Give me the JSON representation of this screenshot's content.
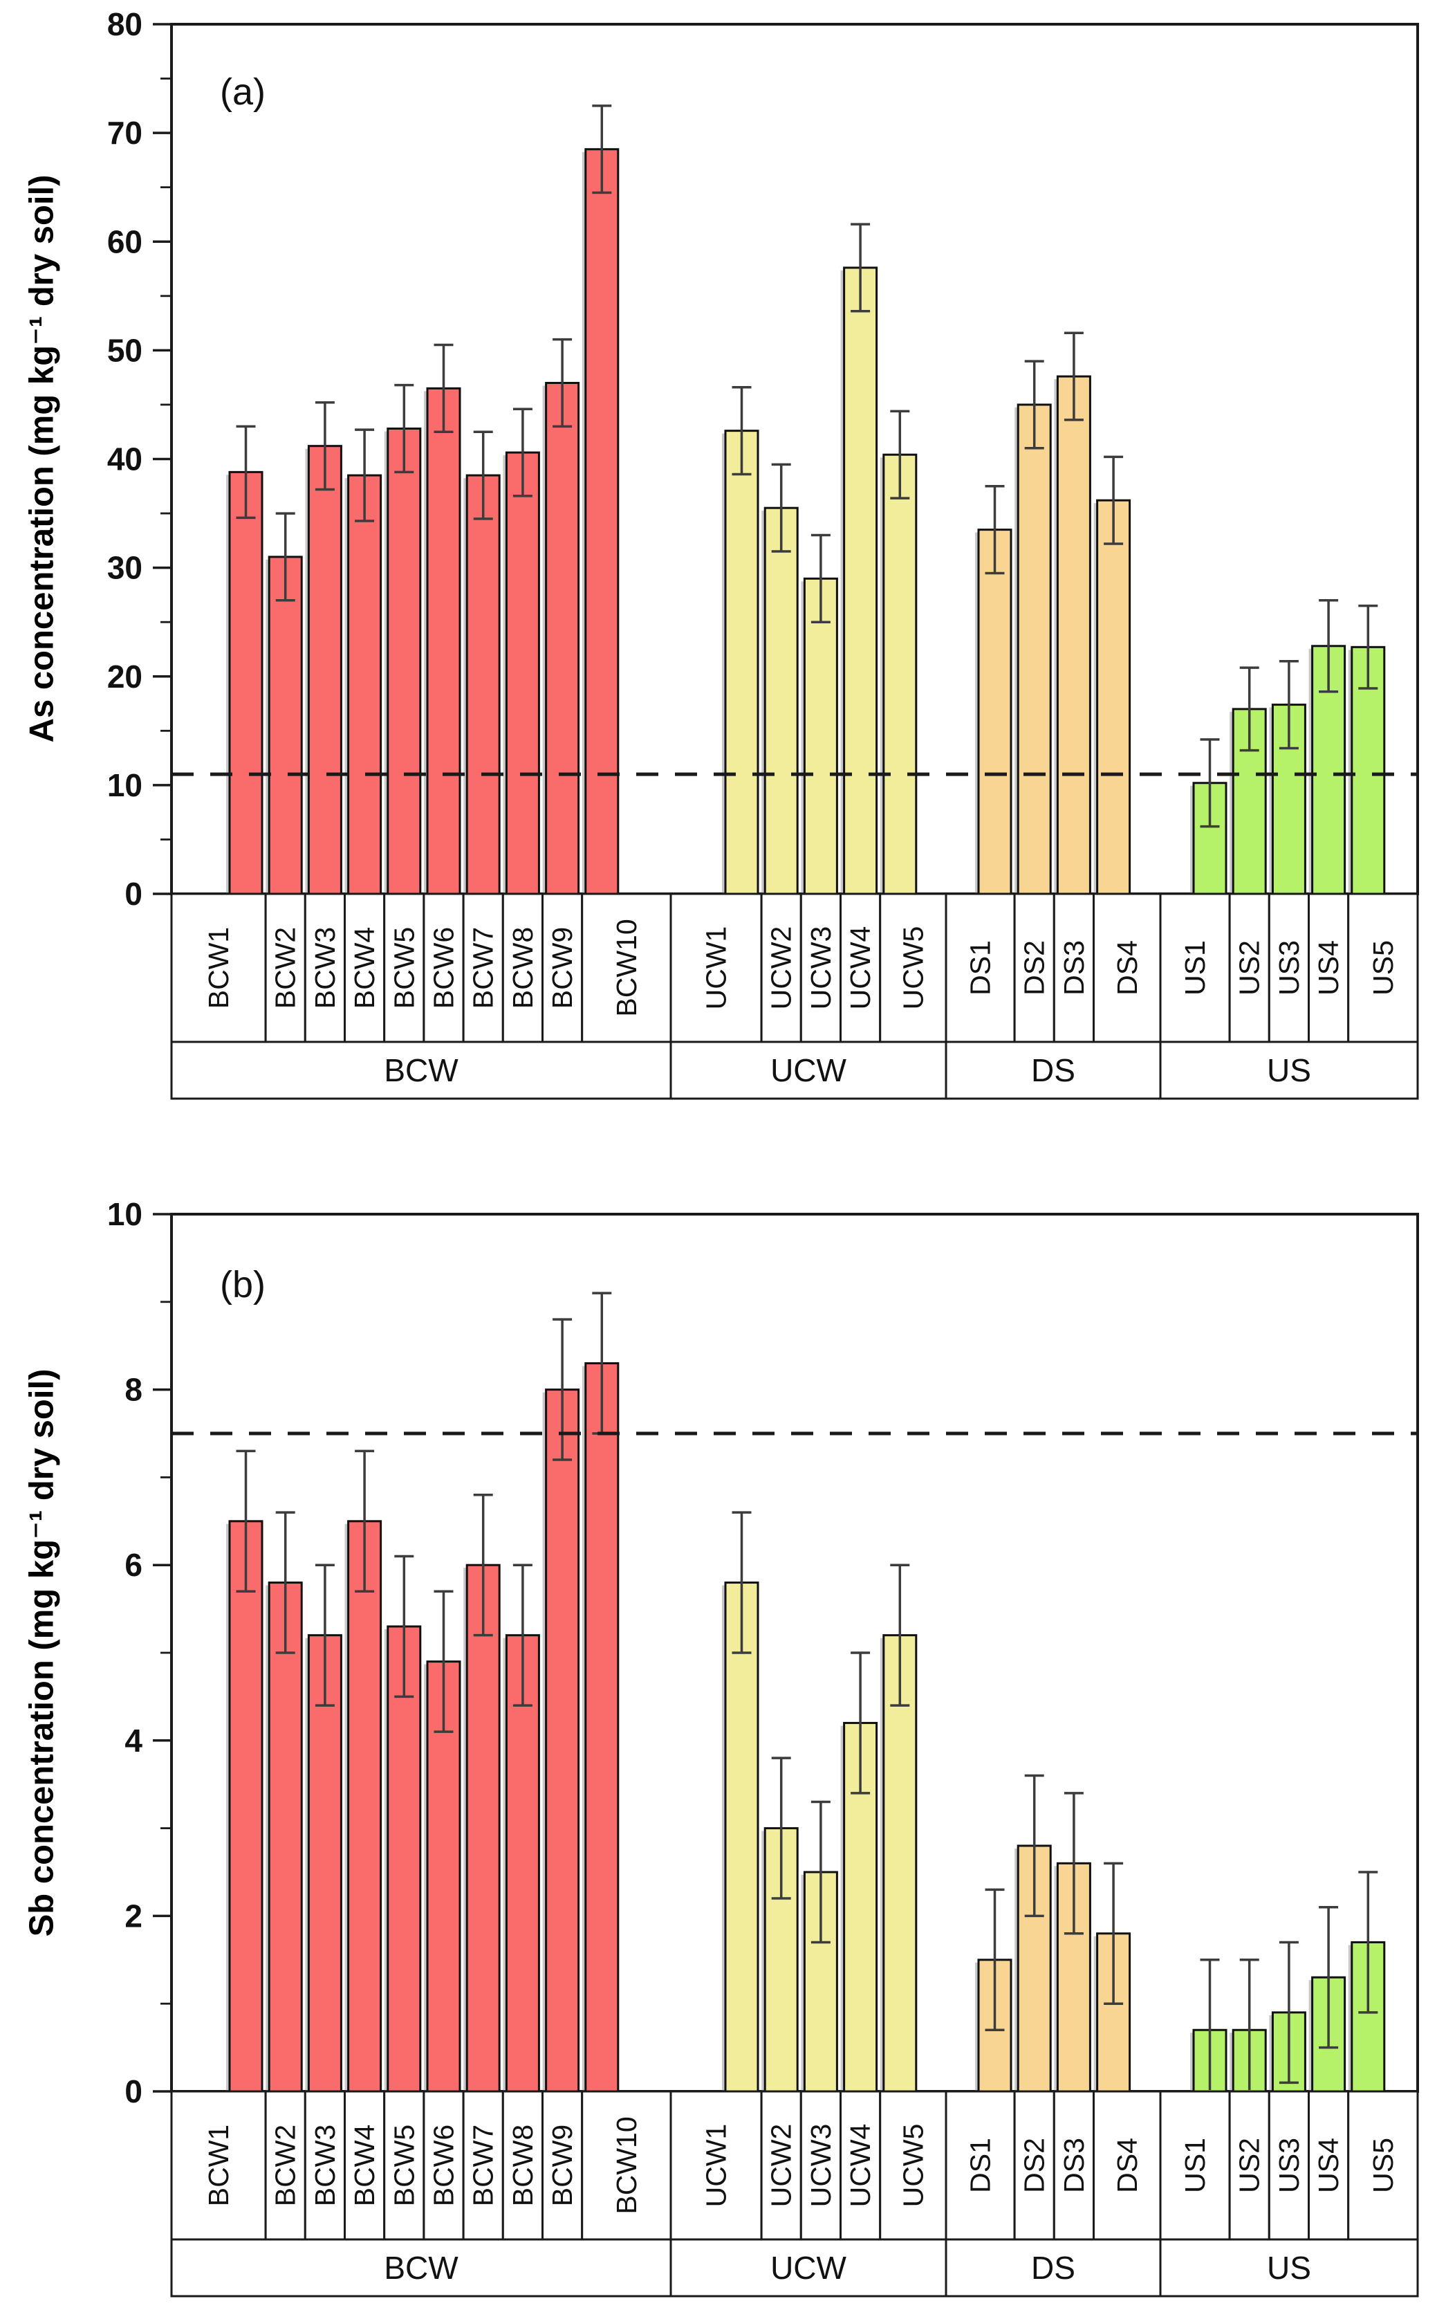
{
  "figure": {
    "background_color": "#ffffff",
    "frame_color": "#1a1a1a",
    "error_bar_color": "#3c3c3c",
    "threshold_line_color": "#1a1a1a"
  },
  "chart_data": [
    {
      "type": "bar",
      "panel_label": "(a)",
      "ylabel": "As concentration (mg kg⁻¹ dry soil)",
      "ylim": [
        0,
        80
      ],
      "yticks": [
        0,
        10,
        20,
        30,
        40,
        50,
        60,
        70,
        80
      ],
      "yminor_step": 5,
      "dashed_line_y": 11,
      "grid": false,
      "legend_position": "none",
      "groups": [
        {
          "label": "BCW",
          "color": "#fa6b6b",
          "samples": [
            {
              "label": "BCW1",
              "value": 38.8,
              "err": 4.2
            },
            {
              "label": "BCW2",
              "value": 31.0,
              "err": 4.0
            },
            {
              "label": "BCW3",
              "value": 41.2,
              "err": 4.0
            },
            {
              "label": "BCW4",
              "value": 38.5,
              "err": 4.2
            },
            {
              "label": "BCW5",
              "value": 42.8,
              "err": 4.0
            },
            {
              "label": "BCW6",
              "value": 46.5,
              "err": 4.0
            },
            {
              "label": "BCW7",
              "value": 38.5,
              "err": 4.0
            },
            {
              "label": "BCW8",
              "value": 40.6,
              "err": 4.0
            },
            {
              "label": "BCW9",
              "value": 47.0,
              "err": 4.0
            },
            {
              "label": "BCW10",
              "value": 68.5,
              "err": 4.0
            }
          ]
        },
        {
          "label": "UCW",
          "color": "#f1ed9b",
          "samples": [
            {
              "label": "UCW1",
              "value": 42.6,
              "err": 4.0
            },
            {
              "label": "UCW2",
              "value": 35.5,
              "err": 4.0
            },
            {
              "label": "UCW3",
              "value": 29.0,
              "err": 4.0
            },
            {
              "label": "UCW4",
              "value": 57.6,
              "err": 4.0
            },
            {
              "label": "UCW5",
              "value": 40.4,
              "err": 4.0
            }
          ]
        },
        {
          "label": "DS",
          "color": "#f8d593",
          "samples": [
            {
              "label": "DS1",
              "value": 33.5,
              "err": 4.0
            },
            {
              "label": "DS2",
              "value": 45.0,
              "err": 4.0
            },
            {
              "label": "DS3",
              "value": 47.6,
              "err": 4.0
            },
            {
              "label": "DS4",
              "value": 36.2,
              "err": 4.0
            }
          ]
        },
        {
          "label": "US",
          "color": "#b5f169",
          "samples": [
            {
              "label": "US1",
              "value": 10.2,
              "err": 4.0
            },
            {
              "label": "US2",
              "value": 17.0,
              "err": 3.8
            },
            {
              "label": "US3",
              "value": 17.4,
              "err": 4.0
            },
            {
              "label": "US4",
              "value": 22.8,
              "err": 4.2
            },
            {
              "label": "US5",
              "value": 22.7,
              "err": 3.8
            }
          ]
        }
      ]
    },
    {
      "type": "bar",
      "panel_label": "(b)",
      "ylabel": "Sb concentration (mg kg⁻¹ dry soil)",
      "ylim": [
        0,
        10
      ],
      "yticks": [
        0,
        2,
        4,
        6,
        8,
        10
      ],
      "yminor_step": 1,
      "dashed_line_y": 7.5,
      "grid": false,
      "legend_position": "none",
      "groups": [
        {
          "label": "BCW",
          "color": "#fa6b6b",
          "samples": [
            {
              "label": "BCW1",
              "value": 6.5,
              "err": 0.8
            },
            {
              "label": "BCW2",
              "value": 5.8,
              "err": 0.8
            },
            {
              "label": "BCW3",
              "value": 5.2,
              "err": 0.8
            },
            {
              "label": "BCW4",
              "value": 6.5,
              "err": 0.8
            },
            {
              "label": "BCW5",
              "value": 5.3,
              "err": 0.8
            },
            {
              "label": "BCW6",
              "value": 4.9,
              "err": 0.8
            },
            {
              "label": "BCW7",
              "value": 6.0,
              "err": 0.8
            },
            {
              "label": "BCW8",
              "value": 5.2,
              "err": 0.8
            },
            {
              "label": "BCW9",
              "value": 8.0,
              "err": 0.8
            },
            {
              "label": "BCW10",
              "value": 8.3,
              "err": 0.8
            }
          ]
        },
        {
          "label": "UCW",
          "color": "#f1ed9b",
          "samples": [
            {
              "label": "UCW1",
              "value": 5.8,
              "err": 0.8
            },
            {
              "label": "UCW2",
              "value": 3.0,
              "err": 0.8
            },
            {
              "label": "UCW3",
              "value": 2.5,
              "err": 0.8
            },
            {
              "label": "UCW4",
              "value": 4.2,
              "err": 0.8
            },
            {
              "label": "UCW5",
              "value": 5.2,
              "err": 0.8
            }
          ]
        },
        {
          "label": "DS",
          "color": "#f8d593",
          "samples": [
            {
              "label": "DS1",
              "value": 1.5,
              "err": 0.8
            },
            {
              "label": "DS2",
              "value": 2.8,
              "err": 0.8
            },
            {
              "label": "DS3",
              "value": 2.6,
              "err": 0.8
            },
            {
              "label": "DS4",
              "value": 1.8,
              "err": 0.8
            }
          ]
        },
        {
          "label": "US",
          "color": "#b5f169",
          "samples": [
            {
              "label": "US1",
              "value": 0.7,
              "err": 0.8
            },
            {
              "label": "US2",
              "value": 0.7,
              "err": 0.8
            },
            {
              "label": "US3",
              "value": 0.9,
              "err": 0.8
            },
            {
              "label": "US4",
              "value": 1.3,
              "err": 0.8
            },
            {
              "label": "US5",
              "value": 1.7,
              "err": 0.8
            }
          ]
        }
      ]
    }
  ]
}
